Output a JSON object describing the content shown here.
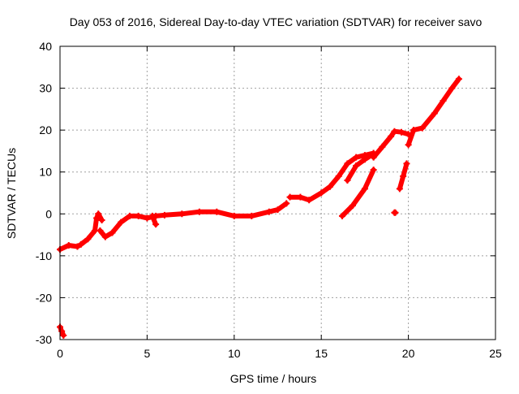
{
  "chart_data": {
    "type": "scatter",
    "title": "Day 053 of 2016, Sidereal Day-to-day VTEC variation (SDTVAR) for receiver savo",
    "xlabel": "GPS time / hours",
    "ylabel": "SDTVAR / TECUs",
    "xlim": [
      0,
      25
    ],
    "ylim": [
      -30,
      40
    ],
    "xticks": [
      0,
      5,
      10,
      15,
      20,
      25
    ],
    "yticks": [
      -30,
      -20,
      -10,
      0,
      10,
      20,
      30,
      40
    ],
    "grid": true,
    "marker_color": "#ff0000",
    "series": [
      {
        "name": "seg-a",
        "points": [
          [
            0,
            -27
          ],
          [
            0.1,
            -28
          ],
          [
            0.2,
            -29
          ]
        ]
      },
      {
        "name": "seg-b",
        "points": [
          [
            0,
            -8.5
          ],
          [
            0.5,
            -7.5
          ],
          [
            1,
            -7.8
          ],
          [
            1.2,
            -7.3
          ],
          [
            1.6,
            -6
          ],
          [
            2,
            -4
          ],
          [
            2.1,
            -1
          ],
          [
            2.2,
            0
          ],
          [
            2.4,
            -1.5
          ]
        ]
      },
      {
        "name": "seg-c",
        "points": [
          [
            2.3,
            -4
          ],
          [
            2.6,
            -5.5
          ],
          [
            3,
            -4.5
          ],
          [
            3.5,
            -2
          ],
          [
            4,
            -0.5
          ],
          [
            4.5,
            -0.5
          ],
          [
            5,
            -1
          ],
          [
            5.5,
            -0.5
          ],
          [
            6,
            -0.3
          ],
          [
            7,
            0
          ],
          [
            8,
            0.5
          ],
          [
            9,
            0.5
          ],
          [
            10,
            -0.5
          ],
          [
            11,
            -0.5
          ],
          [
            12,
            0.5
          ],
          [
            12.5,
            1
          ],
          [
            13,
            2.5
          ]
        ]
      },
      {
        "name": "seg-d",
        "points": [
          [
            5.3,
            -0.5
          ],
          [
            5.5,
            -2.5
          ]
        ]
      },
      {
        "name": "seg-e",
        "points": [
          [
            13.2,
            4
          ],
          [
            13.8,
            4
          ],
          [
            14.3,
            3.3
          ],
          [
            15,
            5
          ],
          [
            15.5,
            6.5
          ],
          [
            16,
            9
          ],
          [
            16.5,
            12
          ],
          [
            17,
            13.5
          ],
          [
            17.5,
            14
          ],
          [
            18,
            14.5
          ]
        ]
      },
      {
        "name": "seg-f",
        "points": [
          [
            16.5,
            8
          ],
          [
            17,
            11.5
          ],
          [
            17.5,
            13
          ],
          [
            18,
            14.3
          ]
        ]
      },
      {
        "name": "seg-g",
        "points": [
          [
            16.2,
            -0.5
          ],
          [
            16.8,
            2
          ],
          [
            17.5,
            6
          ],
          [
            18,
            10.5
          ]
        ]
      },
      {
        "name": "seg-h",
        "points": [
          [
            18,
            13.5
          ],
          [
            18.5,
            16
          ],
          [
            19,
            18.5
          ],
          [
            19.2,
            19.7
          ],
          [
            19.6,
            19.5
          ],
          [
            20,
            19
          ]
        ]
      },
      {
        "name": "seg-i",
        "points": [
          [
            19.5,
            6
          ],
          [
            19.7,
            9
          ],
          [
            19.9,
            12
          ]
        ]
      },
      {
        "name": "seg-j",
        "points": [
          [
            19.2,
            0.3
          ],
          [
            19.25,
            0.3
          ]
        ]
      },
      {
        "name": "seg-k",
        "points": [
          [
            20,
            16.5
          ],
          [
            20.3,
            20
          ],
          [
            20.8,
            20.5
          ],
          [
            21.5,
            24
          ],
          [
            22,
            27
          ],
          [
            22.5,
            30
          ],
          [
            22.9,
            32.2
          ]
        ]
      }
    ]
  }
}
